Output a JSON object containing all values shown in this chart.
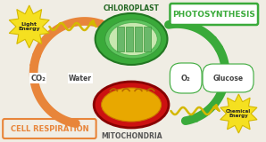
{
  "bg_color": "#f0ede4",
  "title_photosynthesis": "PHOTOSYNTHESIS",
  "title_cell_respiration": "CELL RESPIRATION",
  "label_chloroplast": "CHLOROPLAST",
  "label_mitochondria": "MITOCHONDRIA",
  "label_light_energy": "Light\nEnergy",
  "label_chemical_energy": "Chemical\nEnergy",
  "label_co2": "CO₂",
  "label_water": "Water",
  "label_o2": "O₂",
  "label_glucose": "Glucose",
  "green_arrow_color": "#3aaa3a",
  "orange_arrow_color": "#e8853a",
  "photosynthesis_box_bg": "#ffffff",
  "photosynthesis_box_edge": "#3aaa3a",
  "photosynthesis_text_color": "#3aaa3a",
  "cell_resp_text_color": "#e8853a",
  "cell_resp_box_edge": "#e8853a",
  "yellow_burst_color": "#f5e020",
  "yellow_burst_edge": "#d4b800",
  "wavy_color_light": "#d4b800",
  "wavy_color_chem": "#d4b800",
  "chloroplast_outer": "#3aaa3a",
  "chloroplast_mid": "#5ec45e",
  "chloroplast_body": "#c8e8b0",
  "chloroplast_stripe": "#6ab86a",
  "mitochondria_outer": "#cc1111",
  "mitochondria_inner": "#e8a800",
  "mitochondria_line": "#b86800",
  "label_color_dark": "#444444"
}
